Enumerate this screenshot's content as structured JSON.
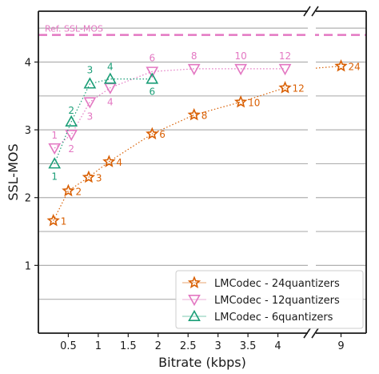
{
  "chart_data": {
    "type": "line",
    "xlabel": "Bitrate (kbps)",
    "ylabel": "SSL-MOS",
    "x_ticks_left": [
      "0.5",
      "1",
      "1.5",
      "2",
      "2.5",
      "3",
      "3.5",
      "4"
    ],
    "x_ticks_right": [
      "9"
    ],
    "y_ticks": [
      "1",
      "2",
      "3",
      "4"
    ],
    "ylim": [
      0.0,
      4.75
    ],
    "xlim_left": [
      0.0,
      4.5
    ],
    "xlim_right": [
      8.35,
      9.65
    ],
    "grid": "horizontal",
    "legend_position": "bottom-right",
    "reference_line": {
      "label": "Ref. SSL-MOS",
      "value": 4.4,
      "color": "#e377c2"
    },
    "series": [
      {
        "name": "LMCodec - 24quantizers",
        "color": "#d95f02",
        "marker": "star",
        "points": [
          {
            "x": 0.25,
            "y": 1.66,
            "label": "1"
          },
          {
            "x": 0.5,
            "y": 2.1,
            "label": "2"
          },
          {
            "x": 0.84,
            "y": 2.3,
            "label": "3"
          },
          {
            "x": 1.18,
            "y": 2.53,
            "label": "4"
          },
          {
            "x": 1.9,
            "y": 2.94,
            "label": "6"
          },
          {
            "x": 2.6,
            "y": 3.22,
            "label": "8"
          },
          {
            "x": 3.38,
            "y": 3.41,
            "label": "10"
          },
          {
            "x": 4.12,
            "y": 3.62,
            "label": "12"
          },
          {
            "x": 9.0,
            "y": 3.94,
            "label": "24"
          }
        ]
      },
      {
        "name": "LMCodec - 12quantizers",
        "color": "#e377c2",
        "marker": "triangle-down",
        "points": [
          {
            "x": 0.27,
            "y": 2.73,
            "label": "1"
          },
          {
            "x": 0.55,
            "y": 2.93,
            "label": "2"
          },
          {
            "x": 0.86,
            "y": 3.41,
            "label": "3"
          },
          {
            "x": 1.2,
            "y": 3.62,
            "label": "4"
          },
          {
            "x": 1.9,
            "y": 3.86,
            "label": "6"
          },
          {
            "x": 2.6,
            "y": 3.9,
            "label": "8"
          },
          {
            "x": 3.38,
            "y": 3.9,
            "label": "10"
          },
          {
            "x": 4.12,
            "y": 3.9,
            "label": "12"
          }
        ]
      },
      {
        "name": "LMCodec - 6quantizers",
        "color": "#1b9e77",
        "marker": "triangle-up",
        "points": [
          {
            "x": 0.27,
            "y": 2.5,
            "label": "1"
          },
          {
            "x": 0.55,
            "y": 3.12,
            "label": "2"
          },
          {
            "x": 0.86,
            "y": 3.68,
            "label": "3"
          },
          {
            "x": 1.2,
            "y": 3.75,
            "label": "4"
          },
          {
            "x": 1.9,
            "y": 3.75,
            "label": "6"
          }
        ]
      }
    ]
  }
}
